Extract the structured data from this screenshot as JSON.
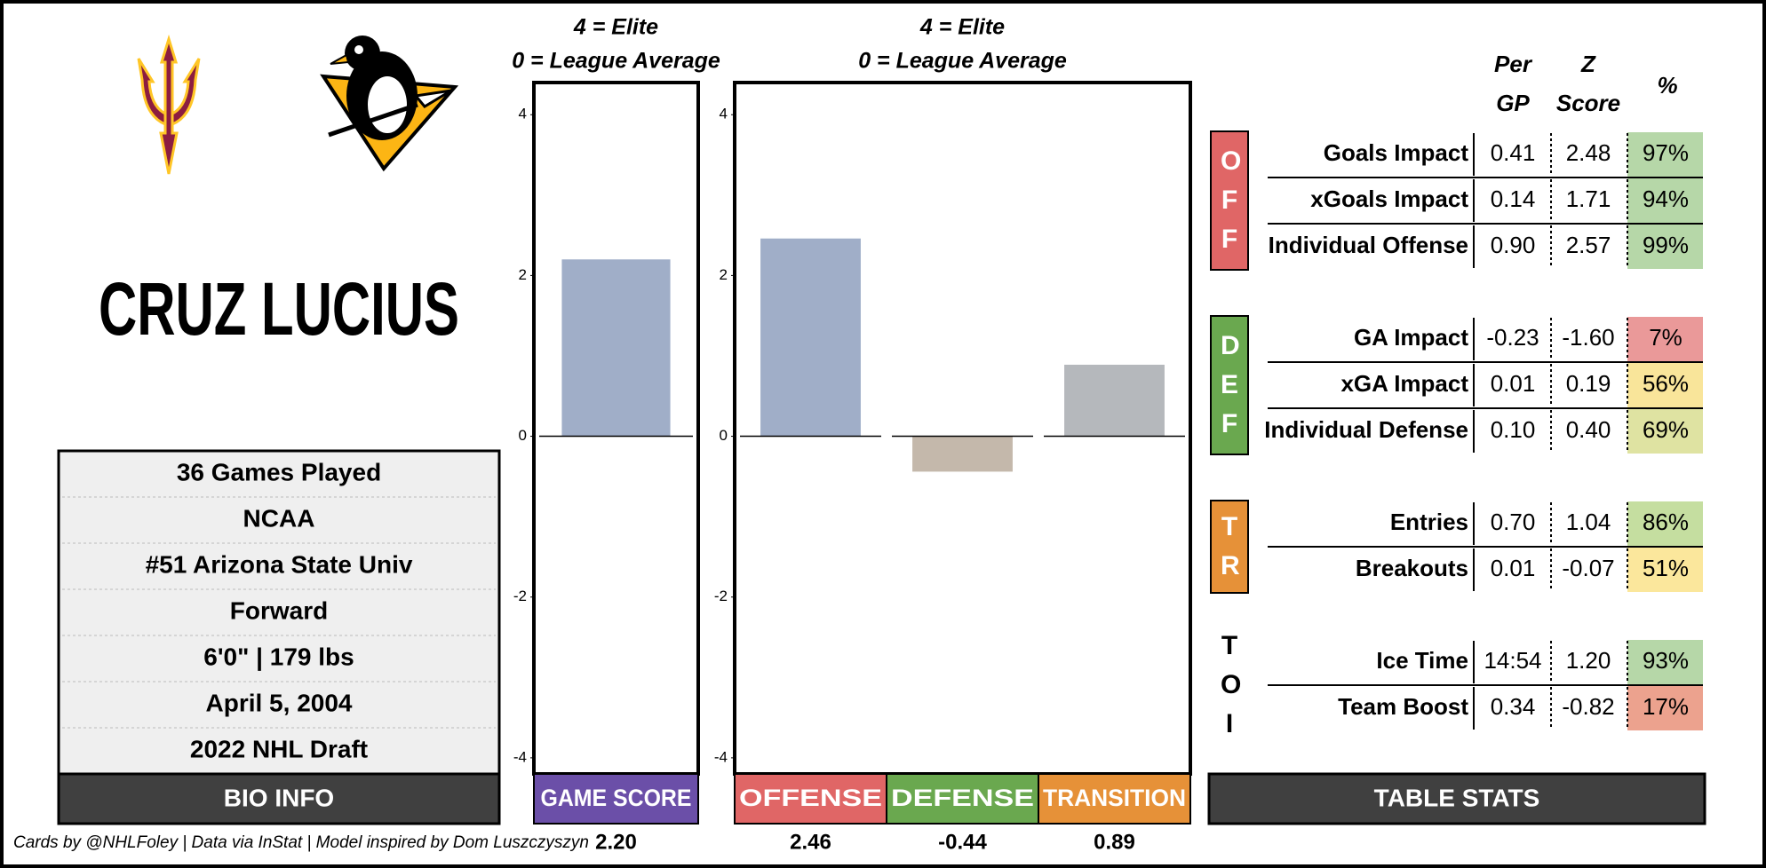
{
  "player": {
    "name": "CRUZ LUCIUS"
  },
  "bio": {
    "title": "BIO INFO",
    "rows": [
      "36 Games Played",
      "NCAA",
      "#51 Arizona State Univ",
      "Forward",
      "6'0\" | 179 lbs",
      "April 5, 2004",
      "2022 NHL Draft"
    ]
  },
  "chart_data": [
    {
      "type": "bar",
      "title": "4 = Elite",
      "subtitle": "0 = League Average",
      "categories": [
        "GAME SCORE"
      ],
      "values": [
        2.2
      ],
      "value_labels": [
        "2.20"
      ],
      "colors": [
        "#a0aec8"
      ],
      "label_colors": [
        "#6b4fa8"
      ],
      "ylim": [
        -4.2,
        4.4
      ],
      "yticks": [
        -4,
        -2,
        0,
        2,
        4
      ]
    },
    {
      "type": "bar",
      "title": "4 = Elite",
      "subtitle": "0 = League Average",
      "categories": [
        "OFFENSE",
        "DEFENSE",
        "TRANSITION"
      ],
      "values": [
        2.46,
        -0.44,
        0.89
      ],
      "value_labels": [
        "2.46",
        "-0.44",
        "0.89"
      ],
      "colors": [
        "#a0aec8",
        "#c4b8ab",
        "#b5b8bc"
      ],
      "label_colors": [
        "#e06666",
        "#6aa84f",
        "#e69138"
      ],
      "ylim": [
        -4.2,
        4.4
      ],
      "yticks": [
        -4,
        -2,
        0,
        2,
        4
      ]
    }
  ],
  "table": {
    "title": "TABLE STATS",
    "columns": [
      "Per GP",
      "Z Score",
      "%"
    ],
    "groups": [
      {
        "label": "OFF",
        "color": "#e06666",
        "rows": [
          {
            "name": "Goals Impact",
            "per_gp": "0.41",
            "z_score": "2.48",
            "pct": "97%",
            "pct_color": "#b6d7a8"
          },
          {
            "name": "xGoals Impact",
            "per_gp": "0.14",
            "z_score": "1.71",
            "pct": "94%",
            "pct_color": "#b6d7a8"
          },
          {
            "name": "Individual Offense",
            "per_gp": "0.90",
            "z_score": "2.57",
            "pct": "99%",
            "pct_color": "#b6d7a8"
          }
        ]
      },
      {
        "label": "DEF",
        "color": "#6aa84f",
        "rows": [
          {
            "name": "GA Impact",
            "per_gp": "-0.23",
            "z_score": "-1.60",
            "pct": "7%",
            "pct_color": "#ea9999"
          },
          {
            "name": "xGA Impact",
            "per_gp": "0.01",
            "z_score": "0.19",
            "pct": "56%",
            "pct_color": "#f9e59a"
          },
          {
            "name": "Individual Defense",
            "per_gp": "0.10",
            "z_score": "0.40",
            "pct": "69%",
            "pct_color": "#dfe3a2"
          }
        ]
      },
      {
        "label": "TR",
        "color": "#e69138",
        "rows": [
          {
            "name": "Entries",
            "per_gp": "0.70",
            "z_score": "1.04",
            "pct": "86%",
            "pct_color": "#c5dea0"
          },
          {
            "name": "Breakouts",
            "per_gp": "0.01",
            "z_score": "-0.07",
            "pct": "51%",
            "pct_color": "#fbe79c"
          }
        ]
      },
      {
        "label": "TOI",
        "rows": [
          {
            "name": "Ice Time",
            "per_gp": "14:54",
            "z_score": "1.20",
            "pct": "93%",
            "pct_color": "#b6d7a8"
          },
          {
            "name": "Team Boost",
            "per_gp": "0.34",
            "z_score": "-0.82",
            "pct": "17%",
            "pct_color": "#eca28e"
          }
        ]
      }
    ]
  },
  "footer": "Cards by @NHLFoley | Data via InStat | Model inspired by Dom Luszczyszyn"
}
